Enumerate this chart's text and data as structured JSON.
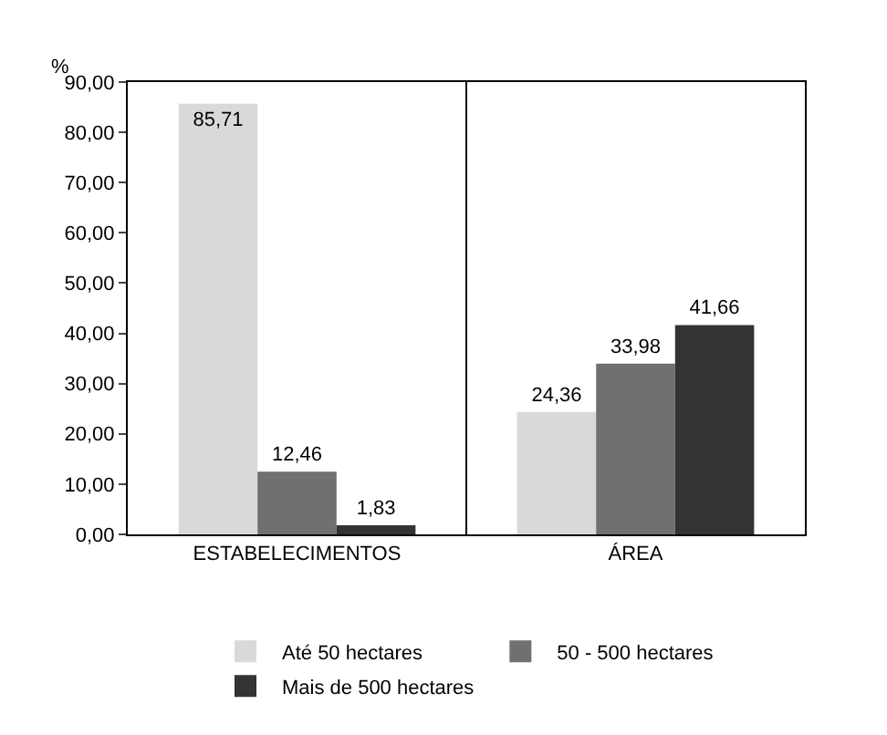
{
  "chart_data": {
    "type": "bar",
    "ylabel": "%",
    "categories": [
      "ESTABELECIMENTOS",
      "ÁREA"
    ],
    "series": [
      {
        "name": "Até 50 hectares",
        "color": "#d9d9d9",
        "values": [
          85.71,
          24.36
        ],
        "value_labels": [
          "85,71",
          "24,36"
        ]
      },
      {
        "name": "50 - 500 hectares",
        "color": "#707070",
        "values": [
          12.46,
          33.98
        ],
        "value_labels": [
          "12,46",
          "33,98"
        ]
      },
      {
        "name": "Mais de 500 hectares",
        "color": "#333333",
        "values": [
          1.83,
          41.66
        ],
        "value_labels": [
          "1,83",
          "41,66"
        ]
      }
    ],
    "ylim": [
      0,
      90
    ],
    "yticks": [
      {
        "value": 0,
        "label": "0,00"
      },
      {
        "value": 10,
        "label": "10,00"
      },
      {
        "value": 20,
        "label": "20,00"
      },
      {
        "value": 30,
        "label": "30,00"
      },
      {
        "value": 40,
        "label": "40,00"
      },
      {
        "value": 50,
        "label": "50,00"
      },
      {
        "value": 60,
        "label": "60,00"
      },
      {
        "value": 70,
        "label": "70,00"
      },
      {
        "value": 80,
        "label": "80,00"
      },
      {
        "value": 90,
        "label": "90,00"
      }
    ],
    "grid": "x",
    "legend": "bottom"
  }
}
